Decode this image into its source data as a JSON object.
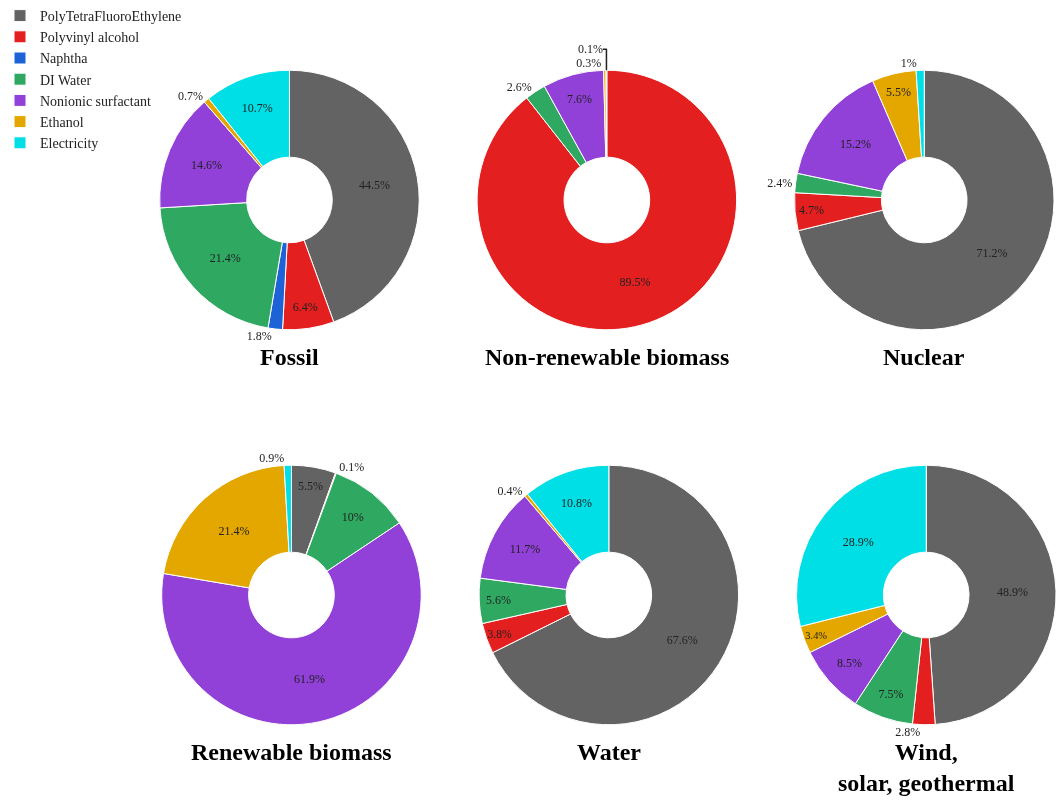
{
  "chart_data": {
    "type": "donut",
    "legend": "top left",
    "categories": [
      "PolyTetraFluoroEthylene",
      "Polyvinyl alcohol",
      "Naphtha",
      "DI Water",
      "Nonionic surfactant",
      "Ethanol",
      "Electricity"
    ],
    "colors": [
      "#636363",
      "#e41f1f",
      "#1e62d8",
      "#2fa862",
      "#9140d8",
      "#e4a700",
      "#00dfe6"
    ],
    "series": [
      {
        "name": "Fossil",
        "values": [
          44.5,
          6.4,
          1.8,
          21.4,
          14.6,
          0.7,
          10.7
        ],
        "value_labels": [
          "44.5%",
          "6.4%",
          "1.8%",
          "21.4%",
          "14.6%",
          "0.7%",
          "10.7%"
        ]
      },
      {
        "name": "Non-renewable biomass",
        "values": [
          null,
          89.5,
          null,
          2.6,
          7.6,
          0.3,
          0.1
        ],
        "value_labels": [
          null,
          "89.5%",
          null,
          "2.6%",
          "7.6%",
          "0.3%",
          "0.1%"
        ]
      },
      {
        "name": "Nuclear",
        "values": [
          71.2,
          4.7,
          null,
          2.4,
          15.2,
          5.5,
          1
        ],
        "value_labels": [
          "71.2%",
          "4.7%",
          null,
          "2.4%",
          "15.2%",
          "5.5%",
          "1%"
        ]
      },
      {
        "name": "Renewable biomass",
        "values": [
          5.5,
          0.1,
          null,
          10,
          61.9,
          21.4,
          0.9
        ],
        "value_labels": [
          "5.5%",
          "0.1%",
          null,
          "10%",
          "61.9%",
          "21.4%",
          "0.9%"
        ]
      },
      {
        "name": "Water",
        "values": [
          67.6,
          3.8,
          null,
          5.6,
          11.7,
          0.4,
          10.8
        ],
        "value_labels": [
          "67.6%",
          "3.8%",
          null,
          "5.6%",
          "11.7%",
          "0.4%",
          "10.8%"
        ]
      },
      {
        "name": "Wind,\nsolar, geothermal",
        "values": [
          48.9,
          2.8,
          null,
          7.5,
          8.5,
          3.4,
          28.9
        ],
        "value_labels": [
          "48.9%",
          "2.8%",
          null,
          "7.5%",
          "8.5%",
          "3.4%",
          "28.9%"
        ]
      }
    ]
  }
}
